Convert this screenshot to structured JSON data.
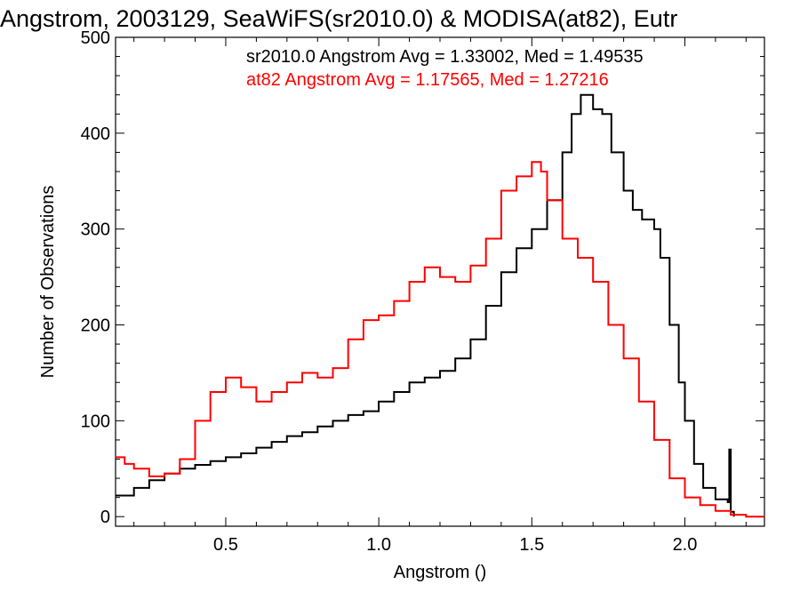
{
  "chart_data": {
    "type": "line",
    "title": "Angstrom, 2003129, SeaWiFS(sr2010.0) & MODISA(at82), Eutr",
    "xlabel": "Angstrom ()",
    "ylabel": "Number of Observations",
    "xlim": [
      0.14,
      2.26
    ],
    "ylim": [
      -10,
      500
    ],
    "x_ticks": [
      {
        "value": 0.5,
        "label": "0.5"
      },
      {
        "value": 1.0,
        "label": "1.0"
      },
      {
        "value": 1.5,
        "label": "1.5"
      },
      {
        "value": 2.0,
        "label": "2.0"
      }
    ],
    "y_ticks": [
      {
        "value": 0,
        "label": "0"
      },
      {
        "value": 100,
        "label": "100"
      },
      {
        "value": 200,
        "label": "200"
      },
      {
        "value": 300,
        "label": "300"
      },
      {
        "value": 400,
        "label": "400"
      },
      {
        "value": 500,
        "label": "500"
      }
    ],
    "grid": false,
    "legend_position": "top-right",
    "series": [
      {
        "name": "sr2010.0",
        "color": "#000000",
        "stats_label": "sr2010.0 Angstrom Avg = 1.33002, Med = 1.49535",
        "points": [
          [
            0.14,
            22
          ],
          [
            0.2,
            30
          ],
          [
            0.25,
            38
          ],
          [
            0.3,
            45
          ],
          [
            0.35,
            50
          ],
          [
            0.4,
            54
          ],
          [
            0.45,
            58
          ],
          [
            0.5,
            62
          ],
          [
            0.55,
            66
          ],
          [
            0.6,
            72
          ],
          [
            0.65,
            78
          ],
          [
            0.7,
            84
          ],
          [
            0.75,
            88
          ],
          [
            0.8,
            94
          ],
          [
            0.85,
            100
          ],
          [
            0.9,
            106
          ],
          [
            0.95,
            110
          ],
          [
            1.0,
            120
          ],
          [
            1.05,
            130
          ],
          [
            1.1,
            140
          ],
          [
            1.15,
            145
          ],
          [
            1.2,
            152
          ],
          [
            1.25,
            165
          ],
          [
            1.3,
            185
          ],
          [
            1.35,
            220
          ],
          [
            1.4,
            255
          ],
          [
            1.45,
            280
          ],
          [
            1.5,
            300
          ],
          [
            1.55,
            330
          ],
          [
            1.6,
            380
          ],
          [
            1.63,
            420
          ],
          [
            1.66,
            440
          ],
          [
            1.7,
            425
          ],
          [
            1.73,
            420
          ],
          [
            1.76,
            380
          ],
          [
            1.8,
            340
          ],
          [
            1.83,
            320
          ],
          [
            1.86,
            310
          ],
          [
            1.9,
            300
          ],
          [
            1.92,
            270
          ],
          [
            1.95,
            200
          ],
          [
            1.98,
            140
          ],
          [
            2.0,
            100
          ],
          [
            2.03,
            55
          ],
          [
            2.06,
            30
          ],
          [
            2.1,
            18
          ],
          [
            2.14,
            15
          ],
          [
            2.145,
            70
          ],
          [
            2.15,
            5
          ],
          [
            2.16,
            0
          ]
        ]
      },
      {
        "name": "at82",
        "color": "#ff0000",
        "stats_label": "at82 Angstrom Avg = 1.17565, Med = 1.27216",
        "points": [
          [
            0.14,
            62
          ],
          [
            0.17,
            55
          ],
          [
            0.2,
            50
          ],
          [
            0.25,
            42
          ],
          [
            0.3,
            45
          ],
          [
            0.35,
            60
          ],
          [
            0.4,
            100
          ],
          [
            0.45,
            130
          ],
          [
            0.5,
            145
          ],
          [
            0.55,
            135
          ],
          [
            0.6,
            120
          ],
          [
            0.65,
            130
          ],
          [
            0.7,
            140
          ],
          [
            0.75,
            150
          ],
          [
            0.8,
            145
          ],
          [
            0.85,
            155
          ],
          [
            0.9,
            185
          ],
          [
            0.95,
            205
          ],
          [
            1.0,
            210
          ],
          [
            1.05,
            225
          ],
          [
            1.1,
            245
          ],
          [
            1.15,
            260
          ],
          [
            1.2,
            250
          ],
          [
            1.25,
            245
          ],
          [
            1.3,
            262
          ],
          [
            1.35,
            290
          ],
          [
            1.4,
            340
          ],
          [
            1.45,
            355
          ],
          [
            1.5,
            370
          ],
          [
            1.53,
            360
          ],
          [
            1.55,
            330
          ],
          [
            1.6,
            290
          ],
          [
            1.65,
            270
          ],
          [
            1.7,
            245
          ],
          [
            1.75,
            200
          ],
          [
            1.8,
            165
          ],
          [
            1.85,
            120
          ],
          [
            1.9,
            80
          ],
          [
            1.95,
            40
          ],
          [
            2.0,
            20
          ],
          [
            2.05,
            12
          ],
          [
            2.1,
            6
          ],
          [
            2.15,
            2
          ],
          [
            2.2,
            0
          ],
          [
            2.26,
            0
          ]
        ]
      }
    ]
  }
}
